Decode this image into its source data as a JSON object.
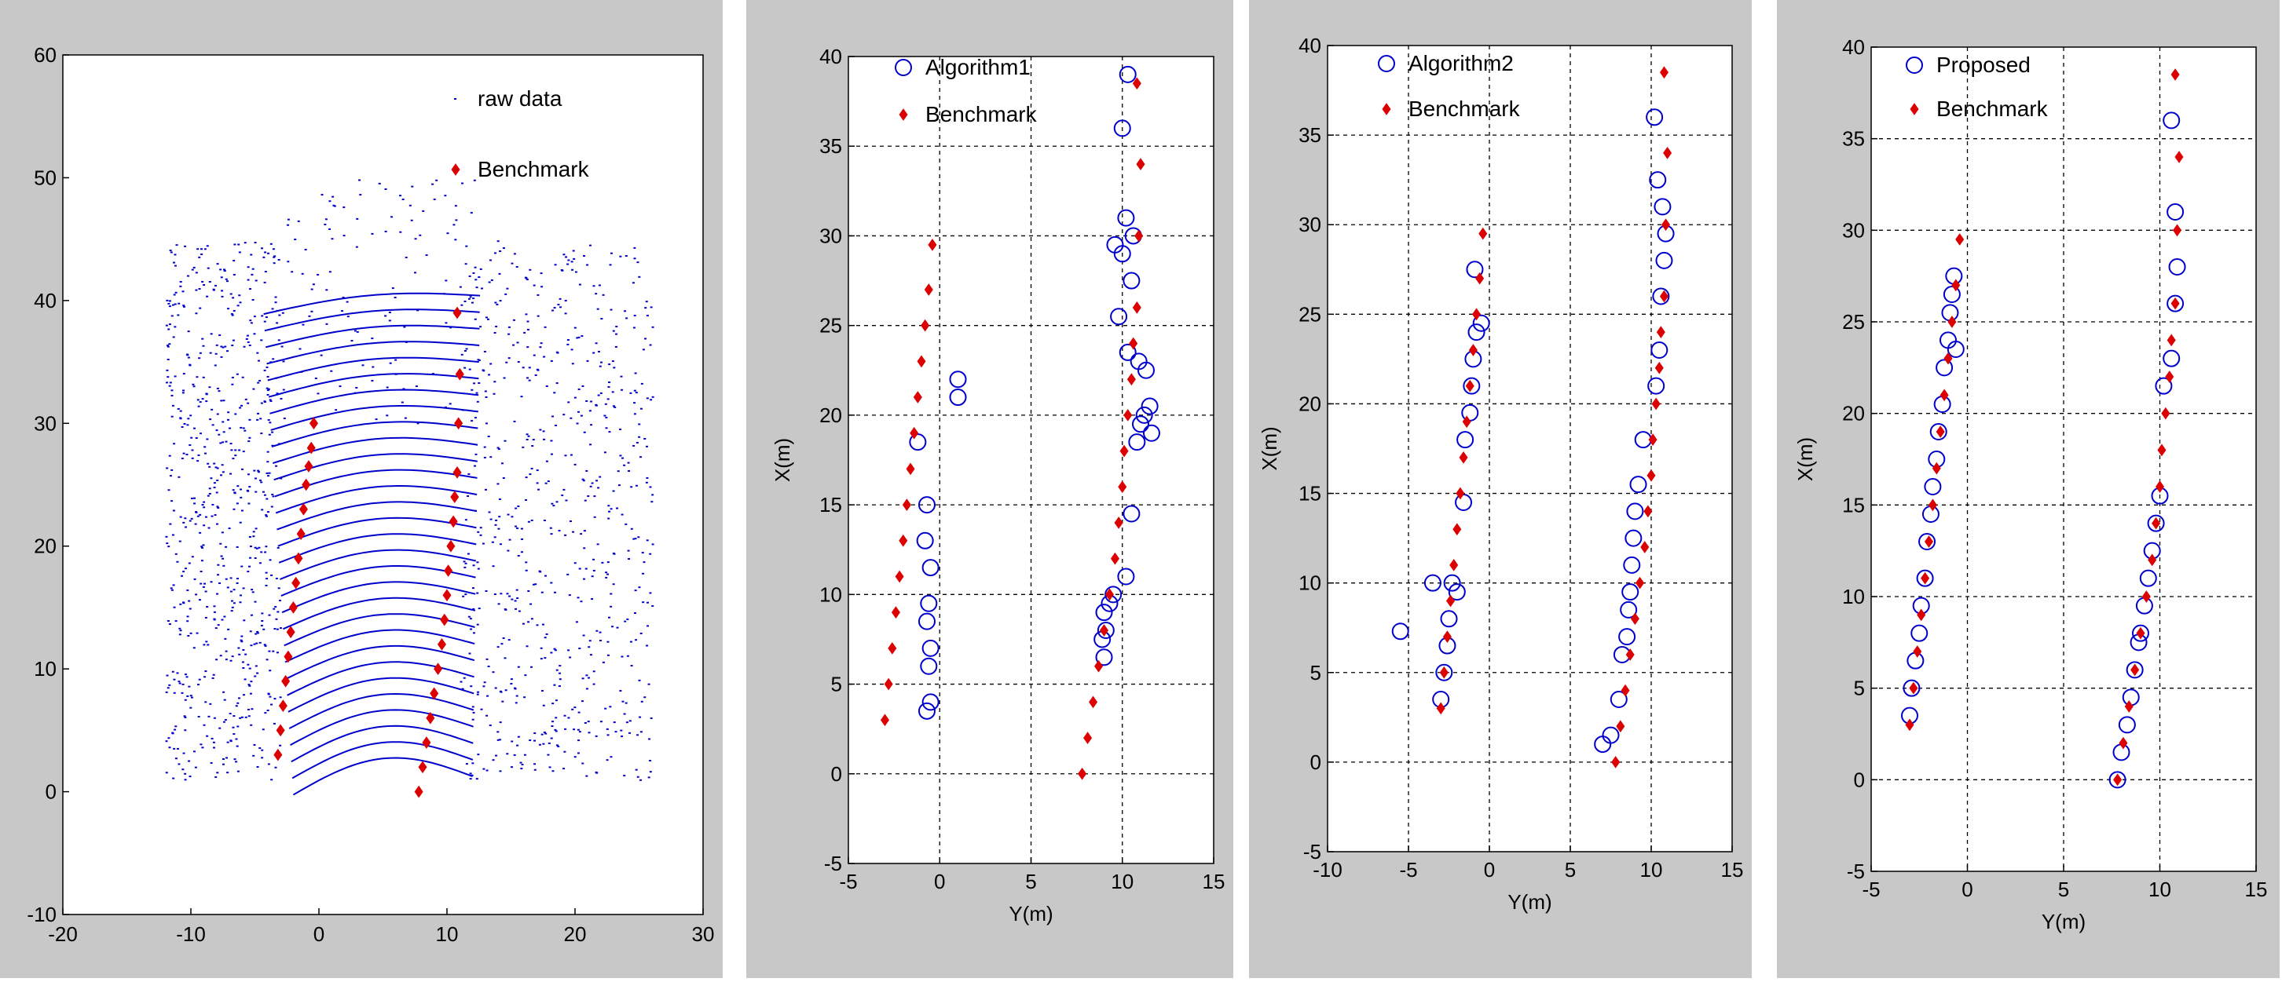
{
  "chart_data": [
    {
      "type": "scatter",
      "xlim": [
        -20,
        30
      ],
      "ylim": [
        -10,
        60
      ],
      "xticks": [
        "-20",
        "-10",
        "0",
        "10",
        "20",
        "30"
      ],
      "yticks": [
        "-10",
        "0",
        "10",
        "20",
        "30",
        "40",
        "50",
        "60"
      ],
      "xlabel": "",
      "ylabel": "",
      "grid": false,
      "legend_position": "top-right",
      "series": [
        {
          "name": "raw data",
          "marker": "dot",
          "color": "#0000cc"
        },
        {
          "name": "Benchmark",
          "marker": "diamond",
          "color": "#dd0000",
          "x": [
            -3.2,
            -3.0,
            -2.8,
            -2.6,
            -2.4,
            -2.2,
            -2.0,
            -1.8,
            -1.6,
            -1.4,
            -1.2,
            -1.0,
            -0.8,
            -0.6,
            -0.4,
            7.8,
            8.1,
            8.4,
            8.7,
            9.0,
            9.3,
            9.6,
            9.8,
            10.0,
            10.1,
            10.3,
            10.5,
            10.6,
            10.8,
            10.9,
            11.0,
            10.8
          ],
          "y": [
            3,
            5,
            7,
            9,
            11,
            13,
            15,
            17,
            19,
            21,
            23,
            25,
            26.5,
            28,
            30,
            0,
            2,
            4,
            6,
            8,
            10,
            12,
            14,
            16,
            18,
            20,
            22,
            24,
            26,
            30,
            34,
            39
          ]
        }
      ]
    },
    {
      "type": "scatter",
      "xlim": [
        -5,
        15
      ],
      "ylim": [
        -5,
        40
      ],
      "xticks": [
        "-5",
        "0",
        "5",
        "10",
        "15"
      ],
      "yticks": [
        "-5",
        "0",
        "5",
        "10",
        "15",
        "20",
        "25",
        "30",
        "35",
        "40"
      ],
      "xlabel": "Y(m)",
      "ylabel": "X(m)",
      "grid": true,
      "legend_position": "top-left",
      "series": [
        {
          "name": "Algorithm1",
          "marker": "circle",
          "color": "#0000cc",
          "x": [
            -0.7,
            -0.5,
            -0.6,
            -0.5,
            -0.7,
            -0.6,
            -0.5,
            -0.8,
            -0.7,
            -1.2,
            1.0,
            1.0,
            9.0,
            8.9,
            9.1,
            9.0,
            9.3,
            9.5,
            10.2,
            10.5,
            10.8,
            11.0,
            11.2,
            11.5,
            11.6,
            11.3,
            10.9,
            10.3,
            9.8,
            10.5,
            10.0,
            9.6,
            10.2,
            10.6,
            10.0,
            10.3
          ],
          "y": [
            3.5,
            4,
            6,
            7,
            8.5,
            9.5,
            11.5,
            13,
            15,
            18.5,
            21,
            22,
            6.5,
            7.5,
            8,
            9,
            9.5,
            10,
            11,
            14.5,
            18.5,
            19.5,
            20,
            20.5,
            19,
            22.5,
            23,
            23.5,
            25.5,
            27.5,
            29,
            29.5,
            31,
            30,
            36,
            39
          ]
        },
        {
          "name": "Benchmark",
          "marker": "diamond",
          "color": "#dd0000",
          "x": [
            -3.0,
            -2.8,
            -2.6,
            -2.4,
            -2.2,
            -2.0,
            -1.8,
            -1.6,
            -1.4,
            -1.2,
            -1.0,
            -0.8,
            -0.6,
            -0.4,
            7.8,
            8.1,
            8.4,
            8.7,
            9.0,
            9.3,
            9.6,
            9.8,
            10.0,
            10.1,
            10.3,
            10.5,
            10.6,
            10.8,
            10.9,
            11.0,
            10.8
          ],
          "y": [
            3,
            5,
            7,
            9,
            11,
            13,
            15,
            17,
            19,
            21,
            23,
            25,
            27,
            29.5,
            0,
            2,
            4,
            6,
            8,
            10,
            12,
            14,
            16,
            18,
            20,
            22,
            24,
            26,
            30,
            34,
            38.5
          ]
        }
      ]
    },
    {
      "type": "scatter",
      "xlim": [
        -10,
        15
      ],
      "ylim": [
        -5,
        40
      ],
      "xticks": [
        "-10",
        "-5",
        "0",
        "5",
        "10",
        "15"
      ],
      "yticks": [
        "-5",
        "0",
        "5",
        "10",
        "15",
        "20",
        "25",
        "30",
        "35",
        "40"
      ],
      "xlabel": "Y(m)",
      "ylabel": "X(m)",
      "grid": true,
      "legend_position": "top-left",
      "series": [
        {
          "name": "Algorithm2",
          "marker": "circle",
          "color": "#0000cc",
          "x": [
            -5.5,
            -3.5,
            -3.0,
            -2.8,
            -2.6,
            -2.5,
            -2.3,
            -2.0,
            -1.6,
            -1.5,
            -1.2,
            -1.1,
            -1.0,
            -0.8,
            -0.9,
            -0.5,
            7.0,
            7.5,
            8.0,
            8.2,
            8.5,
            8.6,
            8.7,
            8.8,
            8.9,
            9.0,
            9.2,
            9.5,
            10.3,
            10.5,
            10.6,
            10.8,
            10.9,
            10.7,
            10.4,
            10.2
          ],
          "y": [
            7.3,
            10,
            3.5,
            5,
            6.5,
            8,
            10,
            9.5,
            14.5,
            18,
            19.5,
            21,
            22.5,
            24,
            27.5,
            24.5,
            1,
            1.5,
            3.5,
            6,
            7,
            8.5,
            9.5,
            11,
            12.5,
            14,
            15.5,
            18,
            21,
            23,
            26,
            28,
            29.5,
            31,
            32.5,
            36
          ]
        },
        {
          "name": "Benchmark",
          "marker": "diamond",
          "color": "#dd0000",
          "x": [
            -3.0,
            -2.8,
            -2.6,
            -2.4,
            -2.2,
            -2.0,
            -1.8,
            -1.6,
            -1.4,
            -1.2,
            -1.0,
            -0.8,
            -0.6,
            -0.4,
            7.8,
            8.1,
            8.4,
            8.7,
            9.0,
            9.3,
            9.6,
            9.8,
            10.0,
            10.1,
            10.3,
            10.5,
            10.6,
            10.8,
            10.9,
            11.0,
            10.8
          ],
          "y": [
            3,
            5,
            7,
            9,
            11,
            13,
            15,
            17,
            19,
            21,
            23,
            25,
            27,
            29.5,
            0,
            2,
            4,
            6,
            8,
            10,
            12,
            14,
            16,
            18,
            20,
            22,
            24,
            26,
            30,
            34,
            38.5
          ]
        }
      ]
    },
    {
      "type": "scatter",
      "xlim": [
        -5,
        15
      ],
      "ylim": [
        -5,
        40
      ],
      "xticks": [
        "-5",
        "0",
        "5",
        "10",
        "15"
      ],
      "yticks": [
        "-5",
        "0",
        "5",
        "10",
        "15",
        "20",
        "25",
        "30",
        "35",
        "40"
      ],
      "xlabel": "Y(m)",
      "ylabel": "X(m)",
      "grid": true,
      "legend_position": "top-left",
      "series": [
        {
          "name": "Proposed",
          "marker": "circle",
          "color": "#0000cc",
          "x": [
            -3.0,
            -2.9,
            -2.7,
            -2.5,
            -2.4,
            -2.2,
            -2.1,
            -1.9,
            -1.8,
            -1.6,
            -1.5,
            -1.3,
            -1.2,
            -1.0,
            -0.9,
            -0.8,
            -0.7,
            -0.6,
            7.8,
            8.0,
            8.3,
            8.5,
            8.7,
            8.9,
            9.0,
            9.2,
            9.4,
            9.6,
            9.8,
            10.0,
            10.2,
            10.6,
            10.8,
            10.9,
            10.8,
            10.6
          ],
          "y": [
            3.5,
            5,
            6.5,
            8,
            9.5,
            11,
            13,
            14.5,
            16,
            17.5,
            19,
            20.5,
            22.5,
            24,
            25.5,
            26.5,
            27.5,
            23.5,
            0,
            1.5,
            3,
            4.5,
            6,
            7.5,
            8,
            9.5,
            11,
            12.5,
            14,
            15.5,
            21.5,
            23,
            26,
            28,
            31,
            36
          ]
        },
        {
          "name": "Benchmark",
          "marker": "diamond",
          "color": "#dd0000",
          "x": [
            -3.0,
            -2.8,
            -2.6,
            -2.4,
            -2.2,
            -2.0,
            -1.8,
            -1.6,
            -1.4,
            -1.2,
            -1.0,
            -0.8,
            -0.6,
            -0.4,
            7.8,
            8.1,
            8.4,
            8.7,
            9.0,
            9.3,
            9.6,
            9.8,
            10.0,
            10.1,
            10.3,
            10.5,
            10.6,
            10.8,
            10.9,
            11.0,
            10.8
          ],
          "y": [
            3,
            5,
            7,
            9,
            11,
            13,
            15,
            17,
            19,
            21,
            23,
            25,
            27,
            29.5,
            0,
            2,
            4,
            6,
            8,
            10,
            12,
            14,
            16,
            18,
            20,
            22,
            24,
            26,
            30,
            34,
            38.5
          ]
        }
      ]
    }
  ]
}
